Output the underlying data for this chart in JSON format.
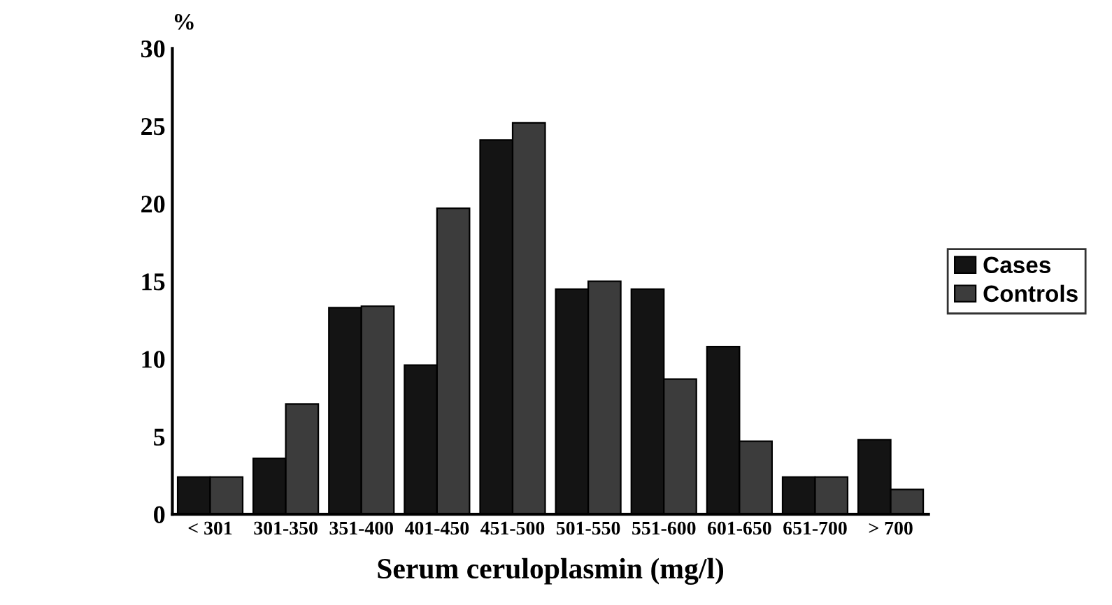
{
  "chart_data": {
    "type": "bar",
    "ylabel": "%",
    "xlabel": "Serum ceruloplasmin (mg/l)",
    "categories": [
      "< 301",
      "301-350",
      "351-400",
      "401-450",
      "451-500",
      "501-550",
      "551-600",
      "601-650",
      "651-700",
      "> 700"
    ],
    "series": [
      {
        "name": "Cases",
        "color": "#141414",
        "values": [
          2.4,
          3.6,
          13.3,
          9.6,
          24.1,
          14.5,
          14.5,
          10.8,
          2.4,
          4.8
        ]
      },
      {
        "name": "Controls",
        "color": "#3c3c3c",
        "values": [
          2.4,
          7.1,
          13.4,
          19.7,
          25.2,
          15.0,
          8.7,
          4.7,
          2.4,
          1.6
        ]
      }
    ],
    "ylim": [
      0,
      30
    ],
    "yticks": [
      0,
      5,
      10,
      15,
      20,
      25,
      30
    ],
    "grid": false,
    "legend": "right"
  }
}
